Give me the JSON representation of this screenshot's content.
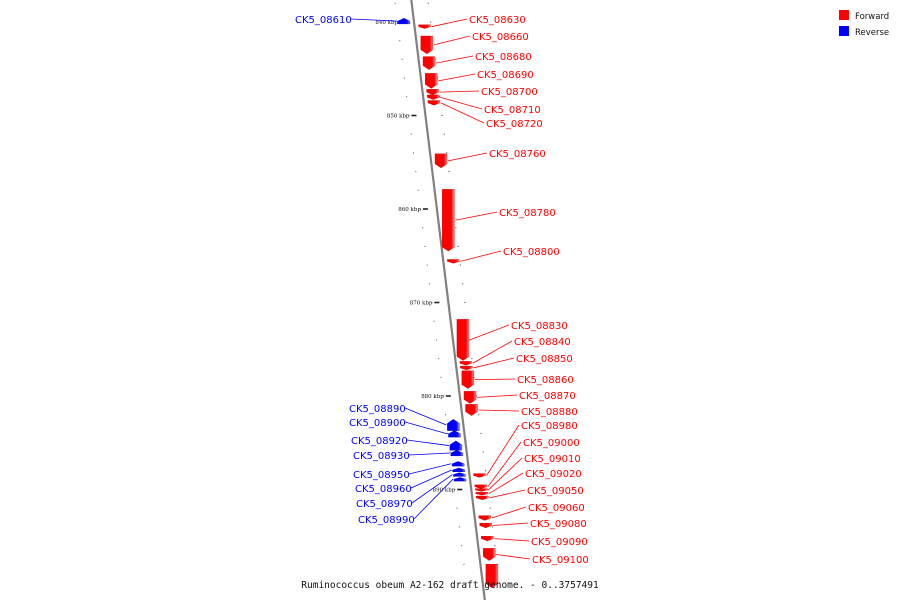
{
  "title": "Ruminococcus obeum A2-162 draft genome. - 0..3757491",
  "colors": {
    "forward": "#ff0000",
    "reverse": "#0000ff",
    "backbone": "#808080"
  },
  "legend": [
    {
      "label": "Forward",
      "strand": "forward"
    },
    {
      "label": "Reverse",
      "strand": "reverse"
    }
  ],
  "scale": [
    {
      "label": "840 kbp",
      "kbp": 840
    },
    {
      "label": "850 kbp",
      "kbp": 850
    },
    {
      "label": "860 kbp",
      "kbp": 860
    },
    {
      "label": "870 kbp",
      "kbp": 870
    },
    {
      "label": "880 kbp",
      "kbp": 880
    },
    {
      "label": "890 kbp",
      "kbp": 890
    }
  ],
  "genes": [
    {
      "label": "CK5_08610",
      "strand": "reverse",
      "start_kbp": 839.6,
      "end_kbp": 840.2
    },
    {
      "label": "CK5_08630",
      "strand": "forward",
      "start_kbp": 840.3,
      "end_kbp": 840.7
    },
    {
      "label": "CK5_08660",
      "strand": "forward",
      "start_kbp": 841.5,
      "end_kbp": 843.4
    },
    {
      "label": "CK5_08680",
      "strand": "forward",
      "start_kbp": 843.7,
      "end_kbp": 845.1
    },
    {
      "label": "CK5_08690",
      "strand": "forward",
      "start_kbp": 845.5,
      "end_kbp": 847.1
    },
    {
      "label": "CK5_08700",
      "strand": "forward",
      "start_kbp": 847.2,
      "end_kbp": 847.8
    },
    {
      "label": "CK5_08710",
      "strand": "forward",
      "start_kbp": 847.8,
      "end_kbp": 848.3
    },
    {
      "label": "CK5_08720",
      "strand": "forward",
      "start_kbp": 848.4,
      "end_kbp": 848.9
    },
    {
      "label": "CK5_08760",
      "strand": "forward",
      "start_kbp": 854.1,
      "end_kbp": 855.6
    },
    {
      "label": "CK5_08780",
      "strand": "forward",
      "start_kbp": 857.9,
      "end_kbp": 864.5
    },
    {
      "label": "CK5_08800",
      "strand": "forward",
      "start_kbp": 865.4,
      "end_kbp": 865.8
    },
    {
      "label": "CK5_08830",
      "strand": "forward",
      "start_kbp": 871.8,
      "end_kbp": 876.2
    },
    {
      "label": "CK5_08840",
      "strand": "forward",
      "start_kbp": 876.3,
      "end_kbp": 876.7
    },
    {
      "label": "CK5_08850",
      "strand": "forward",
      "start_kbp": 876.8,
      "end_kbp": 877.2
    },
    {
      "label": "CK5_08860",
      "strand": "forward",
      "start_kbp": 877.3,
      "end_kbp": 879.2
    },
    {
      "label": "CK5_08870",
      "strand": "forward",
      "start_kbp": 879.5,
      "end_kbp": 880.8
    },
    {
      "label": "CK5_08880",
      "strand": "forward",
      "start_kbp": 880.9,
      "end_kbp": 882.1
    },
    {
      "label": "CK5_08890",
      "strand": "reverse",
      "start_kbp": 882.5,
      "end_kbp": 883.7
    },
    {
      "label": "CK5_08900",
      "strand": "reverse",
      "start_kbp": 883.7,
      "end_kbp": 884.4
    },
    {
      "label": "CK5_08920",
      "strand": "reverse",
      "start_kbp": 884.8,
      "end_kbp": 885.8
    },
    {
      "label": "CK5_08930",
      "strand": "reverse",
      "start_kbp": 885.8,
      "end_kbp": 886.4
    },
    {
      "label": "CK5_08950",
      "strand": "reverse",
      "start_kbp": 887.0,
      "end_kbp": 887.5
    },
    {
      "label": "CK5_08960",
      "strand": "reverse",
      "start_kbp": 887.7,
      "end_kbp": 888.1
    },
    {
      "label": "CK5_08970",
      "strand": "reverse",
      "start_kbp": 888.2,
      "end_kbp": 888.6
    },
    {
      "label": "CK5_08990",
      "strand": "reverse",
      "start_kbp": 888.7,
      "end_kbp": 889.1
    },
    {
      "label": "CK5_08980",
      "strand": "forward",
      "start_kbp": 888.3,
      "end_kbp": 888.7
    },
    {
      "label": "CK5_09000",
      "strand": "forward",
      "start_kbp": 889.5,
      "end_kbp": 889.9
    },
    {
      "label": "CK5_09010",
      "strand": "forward",
      "start_kbp": 889.9,
      "end_kbp": 890.2
    },
    {
      "label": "CK5_09020",
      "strand": "forward",
      "start_kbp": 890.3,
      "end_kbp": 890.6
    },
    {
      "label": "CK5_09050",
      "strand": "forward",
      "start_kbp": 890.7,
      "end_kbp": 891.1
    },
    {
      "label": "CK5_09060",
      "strand": "forward",
      "start_kbp": 892.8,
      "end_kbp": 893.3
    },
    {
      "label": "CK5_09080",
      "strand": "forward",
      "start_kbp": 893.6,
      "end_kbp": 894.1
    },
    {
      "label": "CK5_09090",
      "strand": "forward",
      "start_kbp": 895.0,
      "end_kbp": 895.5
    },
    {
      "label": "CK5_09100",
      "strand": "forward",
      "start_kbp": 896.3,
      "end_kbp": 897.6
    },
    {
      "label": "",
      "strand": "forward",
      "start_kbp": 898.0,
      "end_kbp": 900.5
    }
  ]
}
